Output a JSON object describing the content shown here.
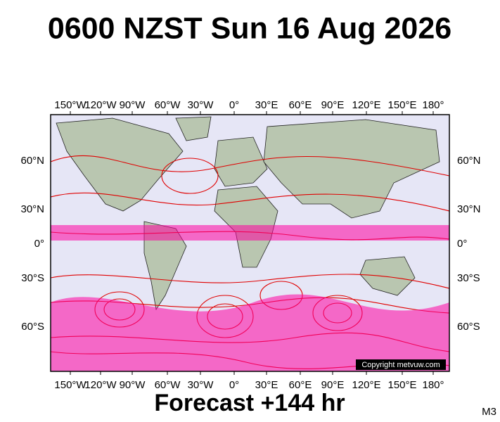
{
  "title": "0600 NZST Sun 16 Aug 2026",
  "map": {
    "longitude_labels": [
      "150°W",
      "120°W",
      "90°W",
      "60°W",
      "30°W",
      "0°",
      "30°E",
      "60°E",
      "90°E",
      "120°E",
      "150°E",
      "180°"
    ],
    "latitude_labels": [
      "60°N",
      "30°N",
      "0°",
      "30°S",
      "60°S"
    ],
    "copyright": "Copyright metvuw.com"
  },
  "footer": {
    "forecast": "Forecast +144 hr",
    "model": "M3"
  }
}
